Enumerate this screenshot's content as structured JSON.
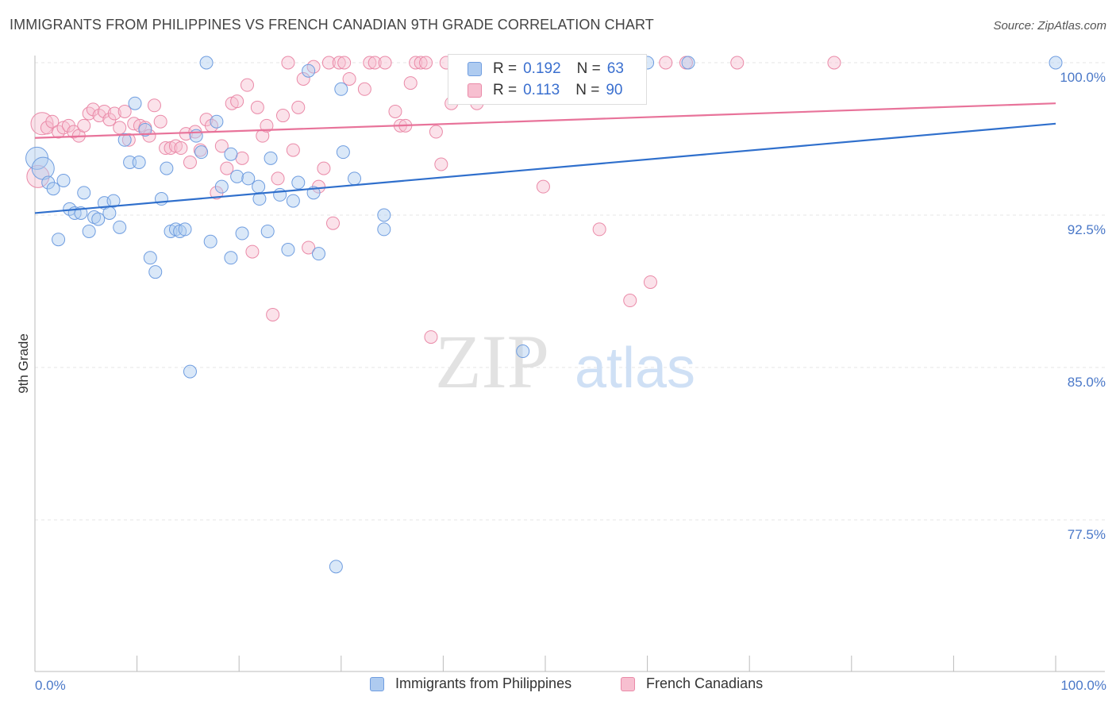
{
  "header": {
    "title": "IMMIGRANTS FROM PHILIPPINES VS FRENCH CANADIAN 9TH GRADE CORRELATION CHART",
    "source": "Source: ZipAtlas.com"
  },
  "watermark": {
    "zip": "ZIP",
    "atlas": "atlas"
  },
  "legend": {
    "rows": [
      {
        "r_label": "R =",
        "r_value": "0.192",
        "n_label": "N =",
        "n_value": "63",
        "color": "#aecbf0",
        "border": "#6f9de0"
      },
      {
        "r_label": "R =",
        "r_value": "0.113",
        "n_label": "N =",
        "n_value": "90",
        "color": "#f7bfd0",
        "border": "#ea8aa8"
      }
    ]
  },
  "bottom_legend": {
    "series_a": "Immigrants from Philippines",
    "series_b": "French Canadians"
  },
  "chart_data": {
    "type": "scatter",
    "title": "IMMIGRANTS FROM PHILIPPINES VS FRENCH CANADIAN 9TH GRADE CORRELATION CHART",
    "ylabel": "9th Grade",
    "xlabel": "",
    "xlim": [
      0,
      100
    ],
    "ylim": [
      70.0,
      101.0
    ],
    "x_tick_labels": [
      "0.0%",
      "100.0%"
    ],
    "y_ticks": [
      100.0,
      92.5,
      85.0,
      77.5
    ],
    "y_tick_labels": [
      "100.0%",
      "92.5%",
      "85.0%",
      "77.5%"
    ],
    "grid": true,
    "colors": {
      "blue": "#6f9de0",
      "blue_fill": "#aecbf0",
      "pink": "#ea8aa8",
      "pink_fill": "#f7bfd0",
      "blue_line": "#2f6fcc",
      "pink_line": "#e8739a"
    },
    "series": [
      {
        "name": "Immigrants from Philippines",
        "trend": {
          "x": [
            0,
            100
          ],
          "y": [
            92.6,
            97.0
          ]
        },
        "points": [
          [
            0.2,
            95.3
          ],
          [
            0.8,
            94.8
          ],
          [
            1.3,
            94.1
          ],
          [
            1.8,
            93.8
          ],
          [
            2.3,
            91.3
          ],
          [
            2.8,
            94.2
          ],
          [
            3.4,
            92.8
          ],
          [
            3.9,
            92.6
          ],
          [
            4.5,
            92.6
          ],
          [
            4.8,
            93.6
          ],
          [
            5.3,
            91.7
          ],
          [
            5.8,
            92.4
          ],
          [
            6.2,
            92.3
          ],
          [
            6.8,
            93.1
          ],
          [
            7.3,
            92.6
          ],
          [
            7.7,
            93.2
          ],
          [
            8.3,
            91.9
          ],
          [
            8.8,
            96.2
          ],
          [
            9.3,
            95.1
          ],
          [
            9.8,
            98.0
          ],
          [
            10.2,
            95.1
          ],
          [
            10.8,
            96.7
          ],
          [
            11.3,
            90.4
          ],
          [
            11.8,
            89.7
          ],
          [
            12.4,
            93.3
          ],
          [
            12.9,
            94.8
          ],
          [
            13.3,
            91.7
          ],
          [
            13.8,
            91.8
          ],
          [
            14.2,
            91.7
          ],
          [
            14.7,
            91.8
          ],
          [
            15.2,
            84.8
          ],
          [
            15.8,
            96.4
          ],
          [
            16.3,
            95.6
          ],
          [
            16.8,
            100.0
          ],
          [
            17.2,
            91.2
          ],
          [
            17.8,
            97.1
          ],
          [
            18.3,
            93.9
          ],
          [
            19.2,
            95.5
          ],
          [
            19.2,
            90.4
          ],
          [
            19.8,
            94.4
          ],
          [
            20.3,
            91.6
          ],
          [
            20.9,
            94.3
          ],
          [
            21.9,
            93.9
          ],
          [
            22.0,
            93.3
          ],
          [
            22.8,
            91.7
          ],
          [
            23.1,
            95.3
          ],
          [
            24.0,
            93.5
          ],
          [
            24.8,
            90.8
          ],
          [
            25.3,
            93.2
          ],
          [
            25.8,
            94.1
          ],
          [
            26.8,
            99.6
          ],
          [
            27.3,
            93.6
          ],
          [
            27.8,
            90.6
          ],
          [
            29.5,
            75.2
          ],
          [
            30.0,
            98.7
          ],
          [
            30.2,
            95.6
          ],
          [
            31.3,
            94.3
          ],
          [
            34.2,
            92.5
          ],
          [
            34.2,
            91.8
          ],
          [
            47.8,
            85.8
          ],
          [
            60.0,
            100.0
          ],
          [
            64.0,
            100.0
          ],
          [
            100.0,
            100.0
          ]
        ]
      },
      {
        "name": "French Canadians",
        "trend": {
          "x": [
            0,
            100
          ],
          "y": [
            96.3,
            98.0
          ]
        },
        "points": [
          [
            0.3,
            94.4
          ],
          [
            0.7,
            97.0
          ],
          [
            1.2,
            96.8
          ],
          [
            1.7,
            97.1
          ],
          [
            2.3,
            96.6
          ],
          [
            2.8,
            96.8
          ],
          [
            3.3,
            96.9
          ],
          [
            3.8,
            96.6
          ],
          [
            4.3,
            96.4
          ],
          [
            4.8,
            96.9
          ],
          [
            5.3,
            97.5
          ],
          [
            5.7,
            97.7
          ],
          [
            6.3,
            97.4
          ],
          [
            6.8,
            97.6
          ],
          [
            7.3,
            97.2
          ],
          [
            7.8,
            97.5
          ],
          [
            8.3,
            96.8
          ],
          [
            8.8,
            97.6
          ],
          [
            9.2,
            96.2
          ],
          [
            9.7,
            97.0
          ],
          [
            10.3,
            96.9
          ],
          [
            10.8,
            96.8
          ],
          [
            11.2,
            96.4
          ],
          [
            11.7,
            97.9
          ],
          [
            12.3,
            97.1
          ],
          [
            12.8,
            95.8
          ],
          [
            13.3,
            95.8
          ],
          [
            13.8,
            95.9
          ],
          [
            14.3,
            95.8
          ],
          [
            14.8,
            96.5
          ],
          [
            15.2,
            95.1
          ],
          [
            15.7,
            96.6
          ],
          [
            16.2,
            95.7
          ],
          [
            16.8,
            97.2
          ],
          [
            17.3,
            96.9
          ],
          [
            17.8,
            93.6
          ],
          [
            18.3,
            95.9
          ],
          [
            18.8,
            94.8
          ],
          [
            19.3,
            98.0
          ],
          [
            19.8,
            98.1
          ],
          [
            20.3,
            95.3
          ],
          [
            20.8,
            98.9
          ],
          [
            21.3,
            90.7
          ],
          [
            21.8,
            97.8
          ],
          [
            22.3,
            96.4
          ],
          [
            22.7,
            96.9
          ],
          [
            23.3,
            87.6
          ],
          [
            23.8,
            94.3
          ],
          [
            24.3,
            97.4
          ],
          [
            24.8,
            100.0
          ],
          [
            25.3,
            95.7
          ],
          [
            25.8,
            97.8
          ],
          [
            26.3,
            99.2
          ],
          [
            26.8,
            90.9
          ],
          [
            27.3,
            99.8
          ],
          [
            27.8,
            93.9
          ],
          [
            28.3,
            94.8
          ],
          [
            28.8,
            100.0
          ],
          [
            29.2,
            92.1
          ],
          [
            29.8,
            100.0
          ],
          [
            30.3,
            100.0
          ],
          [
            30.8,
            99.2
          ],
          [
            32.3,
            98.7
          ],
          [
            32.8,
            100.0
          ],
          [
            33.3,
            100.0
          ],
          [
            34.3,
            100.0
          ],
          [
            35.3,
            97.6
          ],
          [
            35.8,
            96.9
          ],
          [
            36.3,
            96.9
          ],
          [
            36.8,
            99.0
          ],
          [
            37.3,
            100.0
          ],
          [
            37.8,
            100.0
          ],
          [
            38.3,
            100.0
          ],
          [
            38.8,
            86.5
          ],
          [
            39.3,
            96.6
          ],
          [
            39.8,
            95.0
          ],
          [
            40.3,
            100.0
          ],
          [
            40.8,
            98.0
          ],
          [
            43.3,
            98.0
          ],
          [
            47.8,
            100.0
          ],
          [
            48.3,
            100.0
          ],
          [
            49.8,
            93.9
          ],
          [
            55.3,
            91.8
          ],
          [
            55.8,
            100.0
          ],
          [
            58.3,
            88.3
          ],
          [
            60.3,
            89.2
          ],
          [
            61.8,
            100.0
          ],
          [
            63.8,
            100.0
          ],
          [
            68.8,
            100.0
          ],
          [
            78.3,
            100.0
          ]
        ]
      }
    ]
  }
}
